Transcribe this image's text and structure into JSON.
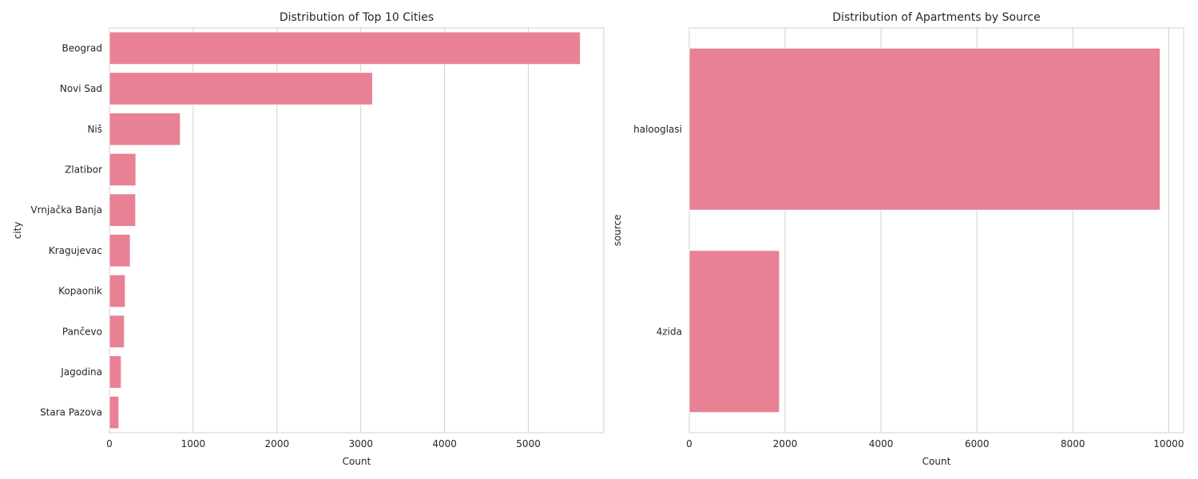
{
  "colors": {
    "bar": "#e88194",
    "grid": "#d0d0d0",
    "text": "#262626",
    "background": "#ffffff"
  },
  "chart_data": [
    {
      "type": "bar",
      "orientation": "horizontal",
      "title": "Distribution of Top 10 Cities",
      "xlabel": "Count",
      "ylabel": "city",
      "categories": [
        "Beograd",
        "Novi Sad",
        "Niš",
        "Zlatibor",
        "Vrnjačka Banja",
        "Kragujevac",
        "Kopaonik",
        "Pančevo",
        "Jagodina",
        "Stara Pazova"
      ],
      "values": [
        5620,
        3140,
        845,
        315,
        312,
        248,
        188,
        178,
        140,
        112
      ],
      "xlim": [
        0,
        5900
      ],
      "xticks": [
        0,
        1000,
        2000,
        3000,
        4000,
        5000
      ],
      "grid": true,
      "legend": "none"
    },
    {
      "type": "bar",
      "orientation": "horizontal",
      "title": "Distribution of Apartments by Source",
      "xlabel": "Count",
      "ylabel": "source",
      "categories": [
        "halooglasi",
        "4zida"
      ],
      "values": [
        9820,
        1880
      ],
      "xlim": [
        0,
        10310
      ],
      "xticks": [
        0,
        2000,
        4000,
        6000,
        8000,
        10000
      ],
      "grid": true,
      "legend": "none"
    }
  ]
}
